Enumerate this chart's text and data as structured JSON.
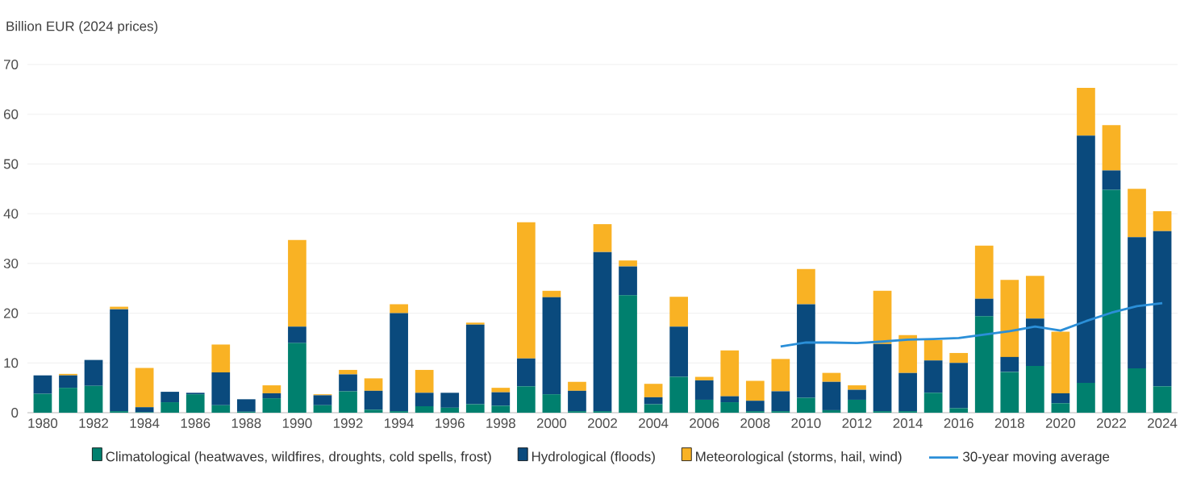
{
  "chart_data": {
    "type": "bar",
    "stacked": true,
    "ylabel": "Billion EUR (2024 prices)",
    "x": [
      1980,
      1981,
      1982,
      1983,
      1984,
      1985,
      1986,
      1987,
      1988,
      1989,
      1990,
      1991,
      1992,
      1993,
      1994,
      1995,
      1996,
      1997,
      1998,
      1999,
      2000,
      2001,
      2002,
      2003,
      2004,
      2005,
      2006,
      2007,
      2008,
      2009,
      2010,
      2011,
      2012,
      2013,
      2014,
      2015,
      2016,
      2017,
      2018,
      2019,
      2020,
      2021,
      2022,
      2023,
      2024
    ],
    "series": [
      {
        "name": "Climatological (heatwaves, wildfires, droughts, cold spells, frost)",
        "color": "#00806e",
        "values": [
          3.8,
          5.0,
          5.4,
          0.3,
          0.1,
          2.1,
          3.7,
          1.5,
          0.2,
          2.9,
          14.0,
          1.5,
          4.3,
          0.6,
          0.3,
          1.3,
          1.0,
          1.7,
          1.4,
          5.3,
          3.7,
          0.3,
          0.3,
          23.6,
          1.7,
          7.2,
          2.6,
          2.1,
          0.3,
          0.3,
          3.0,
          0.5,
          2.6,
          0.3,
          0.3,
          4.0,
          0.9,
          19.4,
          8.2,
          9.4,
          1.9,
          6.0,
          44.8,
          8.9,
          5.3
        ]
      },
      {
        "name": "Hydrological (floods)",
        "color": "#0a4a7d",
        "values": [
          3.7,
          2.5,
          5.2,
          20.5,
          1.0,
          2.1,
          0.3,
          6.6,
          2.5,
          1.0,
          3.3,
          2.0,
          3.4,
          3.8,
          19.7,
          2.7,
          3.0,
          16.0,
          2.7,
          5.6,
          19.5,
          4.1,
          32.0,
          5.8,
          1.4,
          10.1,
          3.9,
          1.2,
          2.1,
          4.0,
          18.8,
          5.7,
          2.0,
          13.5,
          7.7,
          6.5,
          9.1,
          3.5,
          3.0,
          9.5,
          2.0,
          49.7,
          3.9,
          26.4,
          31.2
        ]
      },
      {
        "name": "Meteorological (storms, hail, wind)",
        "color": "#f9b224",
        "values": [
          0,
          0.3,
          0,
          0.5,
          7.9,
          0,
          0,
          5.6,
          0,
          1.6,
          17.4,
          0.2,
          0.9,
          2.5,
          1.8,
          4.6,
          0,
          0.4,
          0.9,
          27.4,
          1.3,
          1.8,
          5.6,
          1.2,
          2.7,
          6.0,
          0.7,
          9.2,
          4.0,
          6.5,
          7.1,
          1.8,
          0.9,
          10.7,
          7.6,
          4.1,
          2.0,
          10.7,
          15.5,
          8.6,
          12.4,
          9.6,
          9.1,
          9.7,
          4.0
        ]
      },
      {
        "name": "30-year moving average",
        "type": "line",
        "color": "#2b8fd8",
        "x": [
          2009,
          2010,
          2011,
          2012,
          2013,
          2014,
          2015,
          2016,
          2017,
          2018,
          2019,
          2020,
          2021,
          2022,
          2023,
          2024
        ],
        "values": [
          13.3,
          14.1,
          14.1,
          14.0,
          14.3,
          14.7,
          14.8,
          15.0,
          15.7,
          16.4,
          17.3,
          16.5,
          18.4,
          20.1,
          21.4,
          22.0
        ]
      }
    ],
    "xlim": [
      1979.4,
      2024.6
    ],
    "xticks": [
      1980,
      1982,
      1984,
      1986,
      1988,
      1990,
      1992,
      1994,
      1996,
      1998,
      2000,
      2002,
      2004,
      2006,
      2008,
      2010,
      2012,
      2014,
      2016,
      2018,
      2020,
      2022,
      2024
    ],
    "ylim": [
      0,
      70
    ],
    "yticks": [
      0,
      10,
      20,
      30,
      40,
      50,
      60,
      70
    ],
    "grid": "y",
    "legend": "bottom"
  }
}
